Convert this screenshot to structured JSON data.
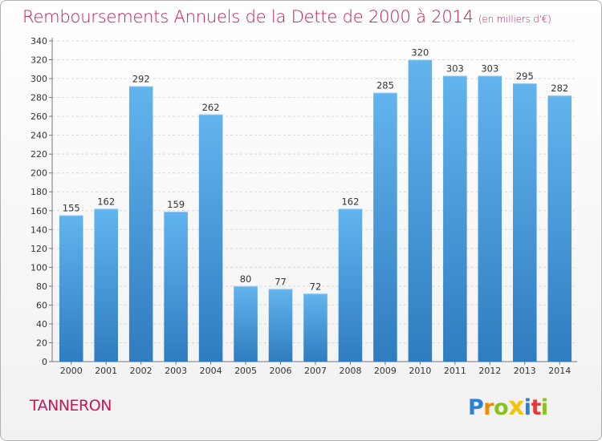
{
  "title": "Remboursements Annuels de la Dette de 2000 à 2014",
  "unit_label": "(en milliers d'€)",
  "commune": "TANNERON",
  "logo": {
    "letters": [
      "P",
      "r",
      "o",
      "x",
      "i",
      "t",
      "i"
    ],
    "colors": [
      "#2e7fd6",
      "#f08a00",
      "#8bc21a",
      "#f1c40f",
      "#2e7fd6",
      "#e53935",
      "#8bc21a"
    ]
  },
  "colors": {
    "bar": "#4a9fdf",
    "bar_light": "#62b4ee",
    "bar_dark": "#2f7cc0",
    "accent": "#c2185b"
  },
  "chart_data": {
    "type": "bar",
    "title": "Remboursements Annuels de la Dette de 2000 à 2014",
    "xlabel": "",
    "ylabel": "(en milliers d'€)",
    "categories": [
      "2000",
      "2001",
      "2002",
      "2003",
      "2004",
      "2005",
      "2006",
      "2007",
      "2008",
      "2009",
      "2010",
      "2011",
      "2012",
      "2013",
      "2014"
    ],
    "values": [
      155,
      162,
      292,
      159,
      262,
      80,
      77,
      72,
      162,
      285,
      320,
      303,
      303,
      295,
      282
    ],
    "ylim": [
      0,
      340
    ],
    "yticks": [
      0,
      20,
      40,
      60,
      80,
      100,
      120,
      140,
      160,
      180,
      200,
      220,
      240,
      260,
      280,
      300,
      320,
      340
    ],
    "grid": true
  }
}
